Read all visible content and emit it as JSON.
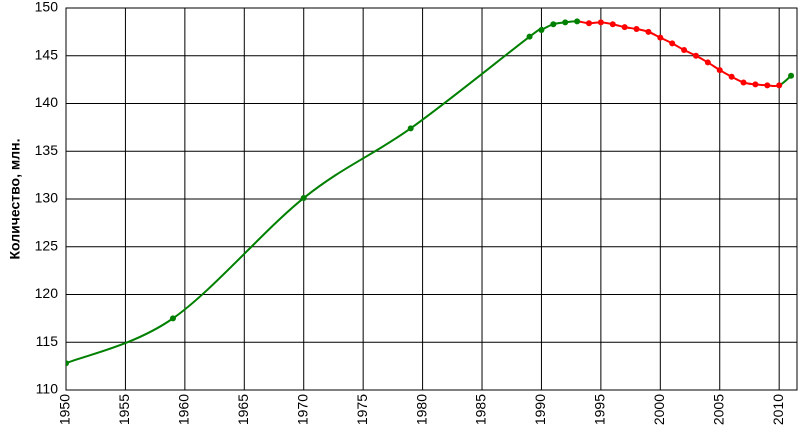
{
  "chart_data": {
    "type": "line",
    "y_label": "Количество, млн.",
    "x": [
      1950,
      1959,
      1970,
      1979,
      1989,
      1990,
      1991,
      1992,
      1993,
      1994,
      1995,
      1996,
      1997,
      1998,
      1999,
      2000,
      2001,
      2002,
      2003,
      2004,
      2005,
      2006,
      2007,
      2008,
      2009,
      2010,
      2011
    ],
    "values": [
      112.8,
      117.5,
      130.1,
      137.4,
      147.0,
      147.7,
      148.3,
      148.5,
      148.6,
      148.4,
      148.5,
      148.3,
      148.0,
      147.8,
      147.5,
      146.9,
      146.3,
      145.6,
      145.0,
      144.3,
      143.5,
      142.8,
      142.2,
      142.0,
      141.9,
      141.9,
      142.9
    ],
    "colors": [
      "#008000",
      "#008000",
      "#008000",
      "#008000",
      "#008000",
      "#008000",
      "#008000",
      "#008000",
      "#008000",
      "#ff0000",
      "#ff0000",
      "#ff0000",
      "#ff0000",
      "#ff0000",
      "#ff0000",
      "#ff0000",
      "#ff0000",
      "#ff0000",
      "#ff0000",
      "#ff0000",
      "#ff0000",
      "#ff0000",
      "#ff0000",
      "#ff0000",
      "#ff0000",
      "#ff0000",
      "#008000"
    ],
    "xlim": [
      1950,
      2011.5
    ],
    "xticks": [
      1950,
      1955,
      1960,
      1965,
      1970,
      1975,
      1980,
      1985,
      1990,
      1995,
      2000,
      2005,
      2010
    ],
    "ylim": [
      110,
      150
    ],
    "yticks": [
      110,
      115,
      120,
      125,
      130,
      135,
      140,
      145,
      150
    ],
    "grid": true
  }
}
